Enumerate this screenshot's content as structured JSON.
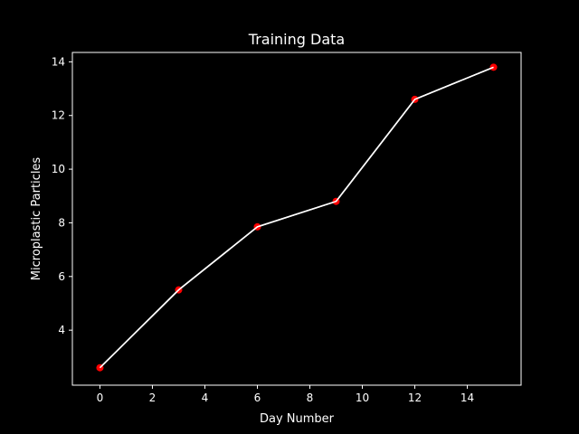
{
  "chart_data": {
    "type": "line",
    "title": "Training Data",
    "xlabel": "Day Number",
    "ylabel": "Microplastic Particles",
    "xlim": [
      -1.05,
      16.05
    ],
    "ylim": [
      1.95,
      14.35
    ],
    "xticks": [
      0,
      2,
      4,
      6,
      8,
      10,
      12,
      14
    ],
    "yticks": [
      4,
      6,
      8,
      10,
      12,
      14
    ],
    "grid": false,
    "series": [
      {
        "x": [
          0,
          3,
          6,
          9,
          12,
          15
        ],
        "y": [
          2.6,
          5.5,
          7.85,
          8.8,
          12.6,
          13.8
        ],
        "line_color": "#ffffff",
        "marker_color": "#ff0000"
      }
    ],
    "colors": {
      "background": "#000000",
      "axes": "#ffffff",
      "text": "#ffffff"
    }
  }
}
